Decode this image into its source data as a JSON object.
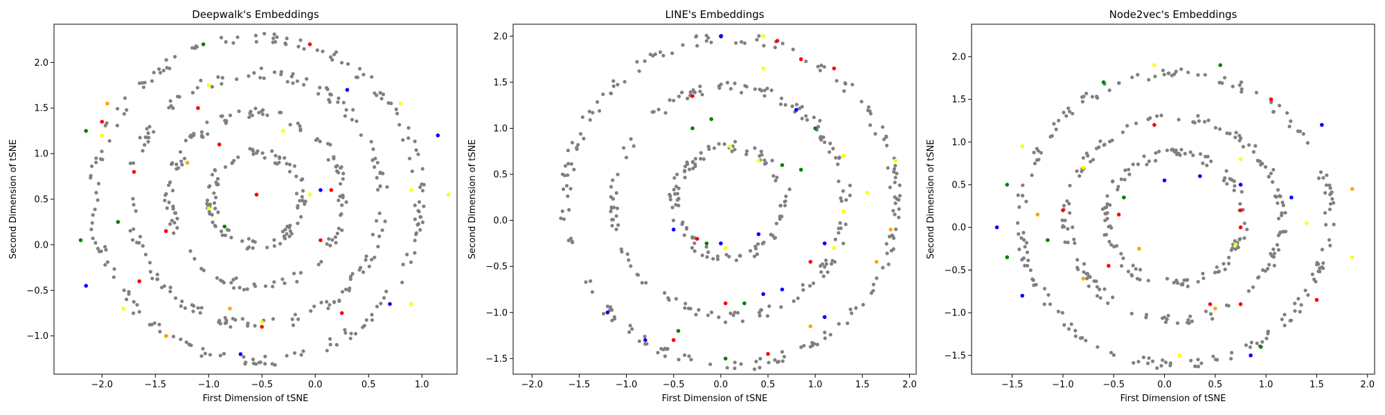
{
  "colors": {
    "gray": "#808080",
    "red": "#ff0000",
    "green": "#008000",
    "blue": "#0000ff",
    "yellow": "#ffff00",
    "orange": "#ffa500"
  },
  "chart_data": [
    {
      "type": "scatter",
      "title": "Deepwalk's Embeddings",
      "xlabel": "First Dimension of tSNE",
      "ylabel": "Second Dimension of tSNE",
      "xlim": [
        -2.45,
        1.33
      ],
      "ylim": [
        -1.42,
        2.42
      ],
      "xticks": [
        -2.5,
        -2.0,
        -1.5,
        -1.0,
        -0.5,
        0.0,
        0.5,
        1.0
      ],
      "yticks": [
        -1.0,
        -0.5,
        0.0,
        0.5,
        1.0,
        1.5,
        2.0
      ],
      "xtick_labels": [
        "−2.5",
        "−2.0",
        "−1.5",
        "−1.0",
        "−0.5",
        "0.0",
        "0.5",
        "1.0"
      ],
      "ytick_labels": [
        "−1.0",
        "−0.5",
        "0.0",
        "0.5",
        "1.0",
        "1.5",
        "2.0"
      ],
      "shape": "circle",
      "ring_radii": [
        1.78,
        1.38,
        0.95,
        0.5
      ],
      "center": [
        -0.55,
        0.5
      ],
      "colored_points": [
        [
          -2.0,
          1.35,
          "red"
        ],
        [
          -2.15,
          1.25,
          "green"
        ],
        [
          -2.0,
          1.2,
          "yellow"
        ],
        [
          -1.95,
          1.55,
          "orange"
        ],
        [
          -1.05,
          2.2,
          "green"
        ],
        [
          -0.05,
          2.2,
          "red"
        ],
        [
          0.3,
          1.7,
          "blue"
        ],
        [
          0.8,
          1.55,
          "yellow"
        ],
        [
          1.15,
          1.2,
          "blue"
        ],
        [
          0.9,
          0.6,
          "yellow"
        ],
        [
          1.25,
          0.55,
          "yellow"
        ],
        [
          -1.1,
          1.5,
          "red"
        ],
        [
          -1.0,
          1.75,
          "yellow"
        ],
        [
          -0.3,
          1.25,
          "yellow"
        ],
        [
          -1.2,
          0.9,
          "orange"
        ],
        [
          -0.9,
          1.1,
          "red"
        ],
        [
          -1.7,
          0.8,
          "red"
        ],
        [
          -1.85,
          0.25,
          "green"
        ],
        [
          -2.2,
          0.05,
          "green"
        ],
        [
          0.05,
          0.6,
          "blue"
        ],
        [
          0.15,
          0.6,
          "red"
        ],
        [
          -0.05,
          0.55,
          "yellow"
        ],
        [
          0.05,
          0.05,
          "red"
        ],
        [
          -0.55,
          0.55,
          "red"
        ],
        [
          -1.0,
          0.4,
          "yellow"
        ],
        [
          -1.4,
          0.15,
          "red"
        ],
        [
          -0.85,
          0.2,
          "green"
        ],
        [
          -2.15,
          -0.45,
          "blue"
        ],
        [
          -1.8,
          -0.7,
          "yellow"
        ],
        [
          -1.65,
          -0.4,
          "red"
        ],
        [
          -1.4,
          -1.0,
          "orange"
        ],
        [
          -0.8,
          -0.7,
          "orange"
        ],
        [
          -0.7,
          -1.2,
          "blue"
        ],
        [
          -0.5,
          -0.9,
          "red"
        ],
        [
          -0.5,
          -0.85,
          "yellow"
        ],
        [
          0.25,
          -0.75,
          "red"
        ],
        [
          0.7,
          -0.65,
          "blue"
        ],
        [
          0.9,
          -0.65,
          "yellow"
        ]
      ]
    },
    {
      "type": "scatter",
      "title": "LINE's Embeddings",
      "xlabel": "First Dimension of tSNE",
      "ylabel": "Second Dimension of tSNE",
      "xlim": [
        -2.2,
        2.07
      ],
      "ylim": [
        -1.67,
        2.13
      ],
      "xticks": [
        -2.0,
        -1.5,
        -1.0,
        -0.5,
        0.0,
        0.5,
        1.0,
        1.5,
        2.0
      ],
      "yticks": [
        -1.5,
        -1.0,
        -0.5,
        0.0,
        0.5,
        1.0,
        1.5,
        2.0
      ],
      "xtick_labels": [
        "−2.0",
        "−1.5",
        "−1.0",
        "−0.5",
        "0.0",
        "0.5",
        "1.0",
        "1.5",
        "2.0"
      ],
      "ytick_labels": [
        "−1.5",
        "−1.0",
        "−0.5",
        "0.0",
        "0.5",
        "1.0",
        "1.5",
        "2.0"
      ],
      "shape": "circle",
      "ring_radii": [
        1.78,
        1.25,
        0.6
      ],
      "center": [
        0.1,
        0.2
      ],
      "colored_points": [
        [
          0.0,
          2.0,
          "blue"
        ],
        [
          0.45,
          2.0,
          "yellow"
        ],
        [
          0.6,
          1.95,
          "red"
        ],
        [
          0.85,
          1.75,
          "red"
        ],
        [
          1.2,
          1.65,
          "red"
        ],
        [
          0.45,
          1.65,
          "yellow"
        ],
        [
          -0.3,
          1.35,
          "red"
        ],
        [
          0.8,
          1.2,
          "blue"
        ],
        [
          -0.1,
          1.1,
          "green"
        ],
        [
          -0.3,
          1.0,
          "green"
        ],
        [
          1.0,
          1.0,
          "green"
        ],
        [
          0.1,
          0.8,
          "yellow"
        ],
        [
          0.4,
          0.65,
          "yellow"
        ],
        [
          0.65,
          0.6,
          "green"
        ],
        [
          0.85,
          0.55,
          "green"
        ],
        [
          1.3,
          0.7,
          "yellow"
        ],
        [
          1.85,
          0.65,
          "yellow"
        ],
        [
          1.55,
          0.3,
          "yellow"
        ],
        [
          1.3,
          0.1,
          "yellow"
        ],
        [
          -0.5,
          -0.1,
          "blue"
        ],
        [
          -0.25,
          -0.2,
          "red"
        ],
        [
          -0.15,
          -0.25,
          "green"
        ],
        [
          0.0,
          -0.25,
          "blue"
        ],
        [
          0.05,
          -0.3,
          "yellow"
        ],
        [
          0.4,
          -0.15,
          "blue"
        ],
        [
          0.95,
          -0.45,
          "red"
        ],
        [
          1.2,
          -0.3,
          "yellow"
        ],
        [
          1.8,
          -0.1,
          "orange"
        ],
        [
          1.65,
          -0.45,
          "orange"
        ],
        [
          1.1,
          -0.25,
          "blue"
        ],
        [
          -1.2,
          -1.0,
          "blue"
        ],
        [
          -0.8,
          -1.3,
          "blue"
        ],
        [
          -0.5,
          -1.3,
          "red"
        ],
        [
          -0.45,
          -1.2,
          "green"
        ],
        [
          0.05,
          -0.9,
          "red"
        ],
        [
          0.25,
          -0.9,
          "green"
        ],
        [
          0.45,
          -0.8,
          "blue"
        ],
        [
          0.65,
          -0.75,
          "blue"
        ],
        [
          1.1,
          -1.05,
          "blue"
        ],
        [
          0.95,
          -1.15,
          "orange"
        ],
        [
          0.5,
          -1.45,
          "red"
        ],
        [
          0.05,
          -1.5,
          "green"
        ]
      ]
    },
    {
      "type": "scatter",
      "title": "Node2vec's Embeddings",
      "xlabel": "First Dimension of tSNE",
      "ylabel": "Second Dimension of tSNE",
      "xlim": [
        -1.9,
        2.07
      ],
      "ylim": [
        -1.72,
        2.38
      ],
      "xticks": [
        -1.5,
        -1.0,
        -0.5,
        0.0,
        0.5,
        1.0,
        1.5,
        2.0
      ],
      "yticks": [
        -1.5,
        -1.0,
        -0.5,
        0.0,
        0.5,
        1.0,
        1.5,
        2.0
      ],
      "xtick_labels": [
        "−1.5",
        "−1.0",
        "−0.5",
        "0.0",
        "0.5",
        "1.0",
        "1.5",
        "2.0"
      ],
      "ytick_labels": [
        "−1.5",
        "−1.0",
        "−0.5",
        "0.0",
        "0.5",
        "1.0",
        "1.5",
        "2.0"
      ],
      "shape": "ellipse",
      "ring_radii": [
        1.8,
        1.25,
        0.8
      ],
      "center": [
        0.1,
        0.1
      ],
      "colored_points": [
        [
          -0.1,
          1.9,
          "yellow"
        ],
        [
          0.55,
          1.9,
          "green"
        ],
        [
          -0.6,
          1.7,
          "green"
        ],
        [
          1.05,
          1.5,
          "red"
        ],
        [
          1.55,
          1.2,
          "blue"
        ],
        [
          -1.4,
          0.95,
          "yellow"
        ],
        [
          -0.8,
          0.7,
          "yellow"
        ],
        [
          -0.1,
          1.2,
          "red"
        ],
        [
          -1.55,
          0.5,
          "green"
        ],
        [
          -1.65,
          0.0,
          "blue"
        ],
        [
          -1.25,
          0.15,
          "orange"
        ],
        [
          -1.0,
          0.2,
          "red"
        ],
        [
          -0.4,
          0.35,
          "green"
        ],
        [
          -0.45,
          0.15,
          "red"
        ],
        [
          -0.25,
          -0.25,
          "orange"
        ],
        [
          -0.55,
          -0.45,
          "red"
        ],
        [
          -1.15,
          -0.15,
          "green"
        ],
        [
          -1.55,
          -0.35,
          "green"
        ],
        [
          -1.4,
          -0.8,
          "blue"
        ],
        [
          -0.8,
          -0.6,
          "orange"
        ],
        [
          0.0,
          0.55,
          "blue"
        ],
        [
          0.35,
          0.6,
          "blue"
        ],
        [
          0.75,
          0.8,
          "yellow"
        ],
        [
          0.75,
          0.5,
          "blue"
        ],
        [
          0.75,
          0.2,
          "red"
        ],
        [
          0.75,
          0.0,
          "red"
        ],
        [
          0.7,
          -0.2,
          "yellow"
        ],
        [
          1.25,
          0.35,
          "blue"
        ],
        [
          1.4,
          0.05,
          "yellow"
        ],
        [
          1.85,
          0.45,
          "orange"
        ],
        [
          1.85,
          -0.35,
          "yellow"
        ],
        [
          1.5,
          -0.85,
          "red"
        ],
        [
          0.45,
          -0.9,
          "red"
        ],
        [
          0.75,
          -0.9,
          "red"
        ],
        [
          0.85,
          -1.5,
          "blue"
        ],
        [
          0.95,
          -1.4,
          "green"
        ],
        [
          0.15,
          -1.5,
          "yellow"
        ],
        [
          0.5,
          -0.95,
          "orange"
        ]
      ]
    }
  ]
}
